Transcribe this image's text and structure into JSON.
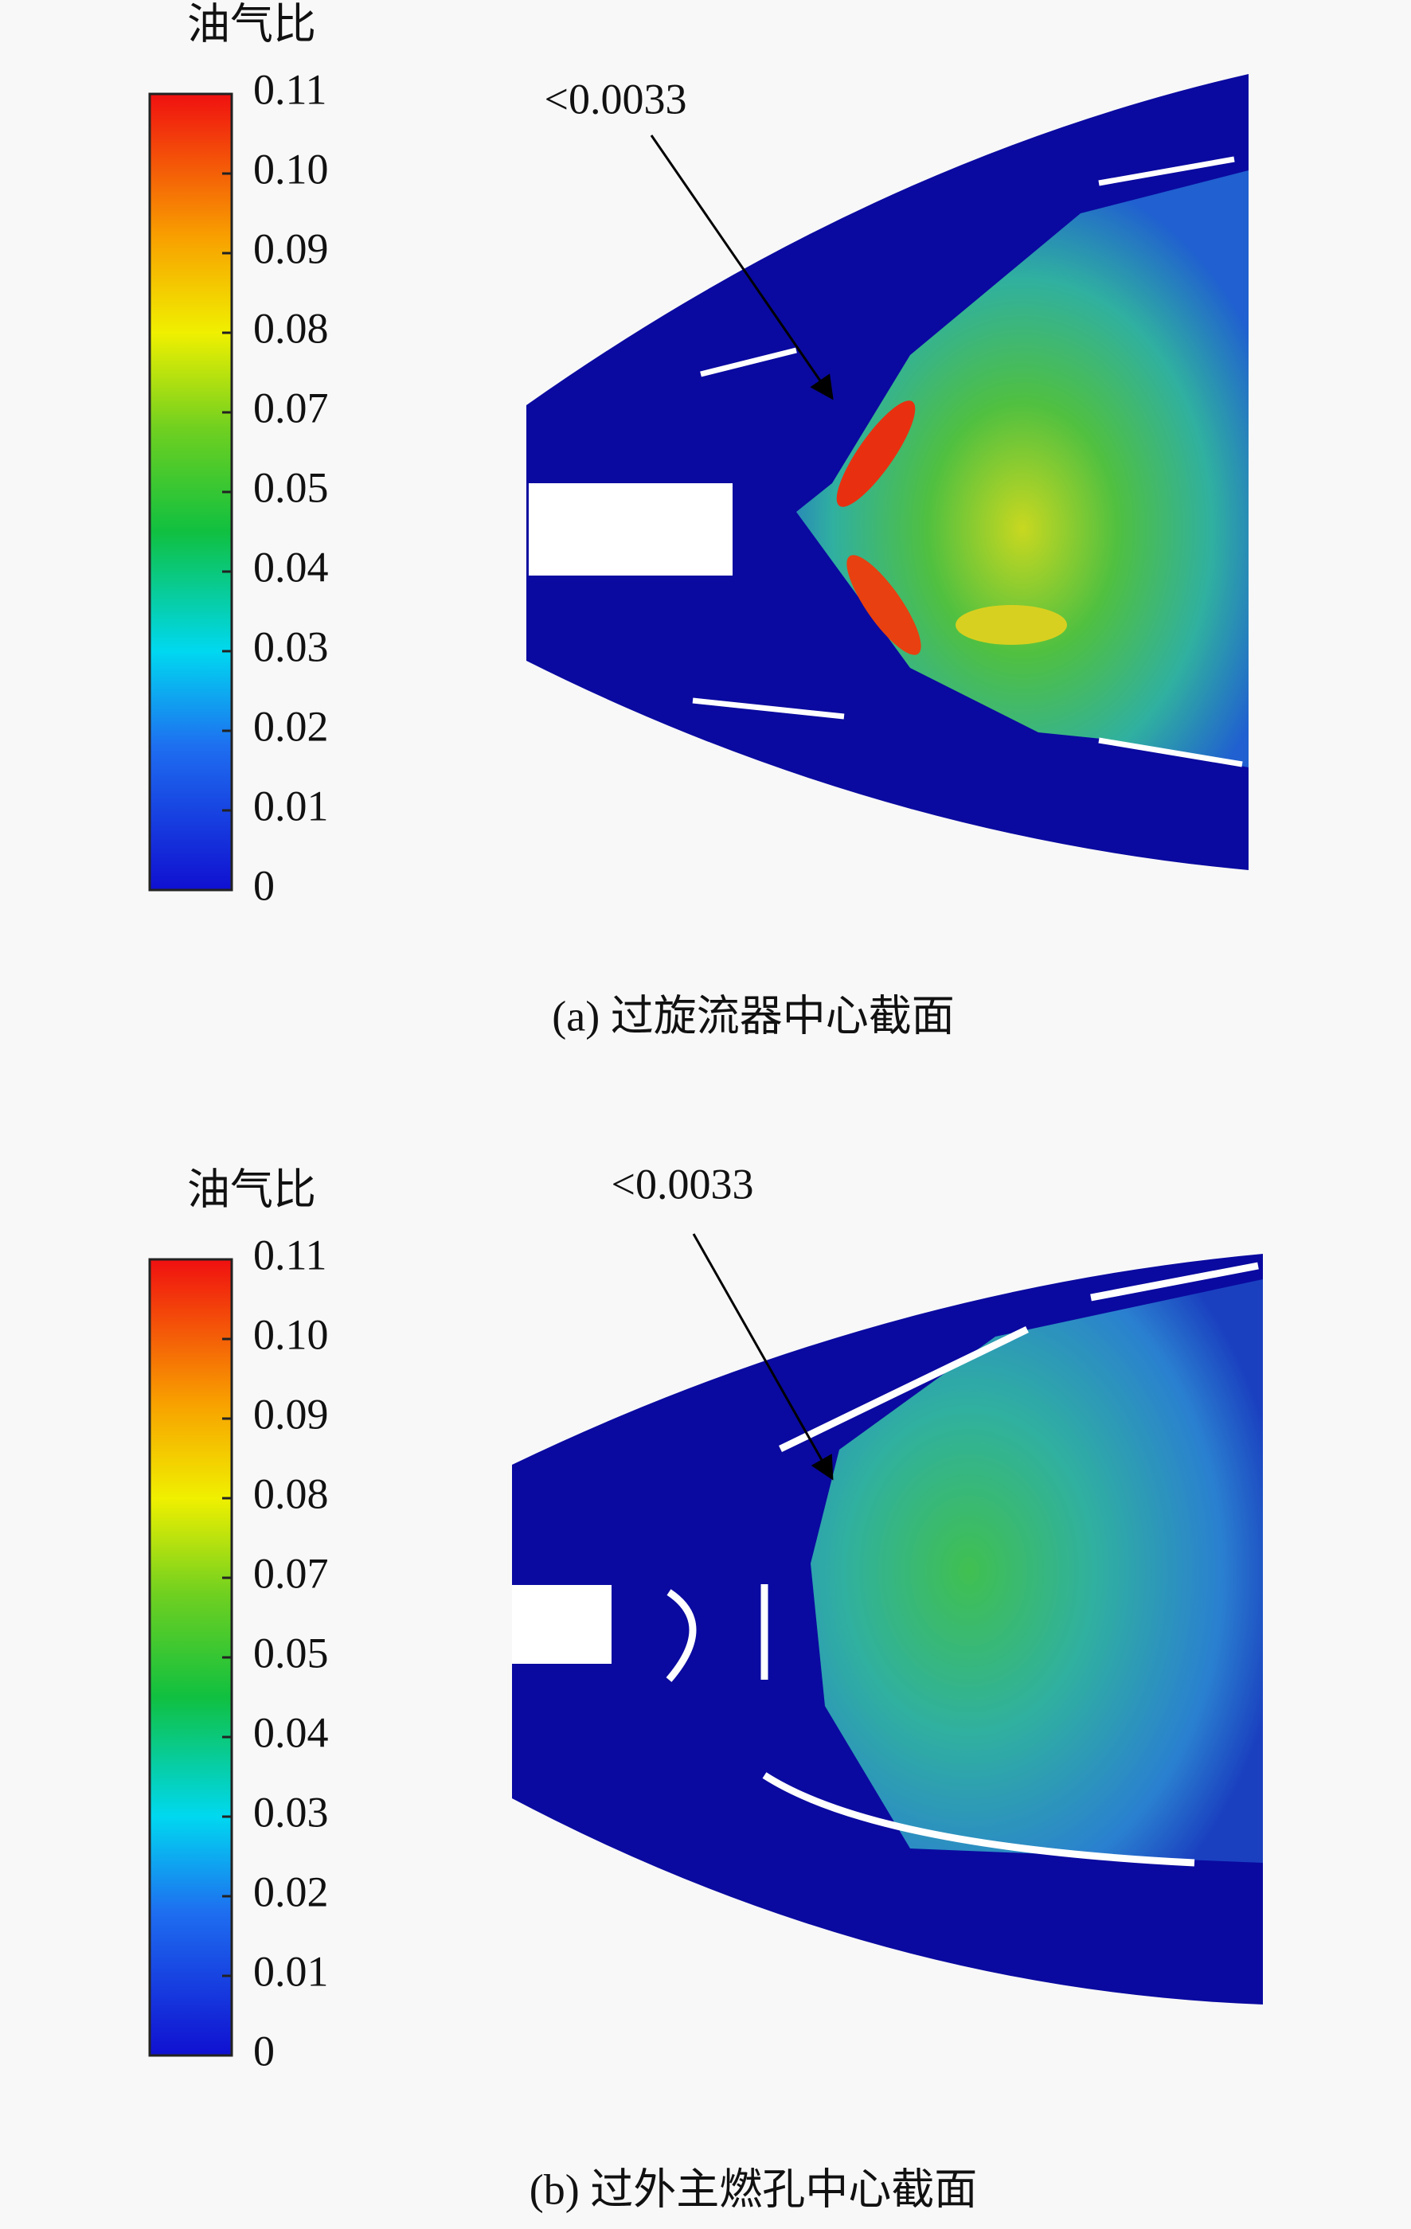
{
  "panels": [
    {
      "colorbar": {
        "title": "油气比",
        "ticks": [
          "0.11",
          "0.10",
          "0.09",
          "0.08",
          "0.07",
          "0.05",
          "0.04",
          "0.03",
          "0.02",
          "0.01",
          "0"
        ]
      },
      "annotation": "<0.0033",
      "caption": "(a) 过旋流器中心截面"
    },
    {
      "colorbar": {
        "title": "油气比",
        "ticks": [
          "0.11",
          "0.10",
          "0.09",
          "0.08",
          "0.07",
          "0.05",
          "0.04",
          "0.03",
          "0.02",
          "0.01",
          "0"
        ]
      },
      "annotation": "<0.0033",
      "caption": "(b) 过外主燃孔中心截面"
    }
  ]
}
